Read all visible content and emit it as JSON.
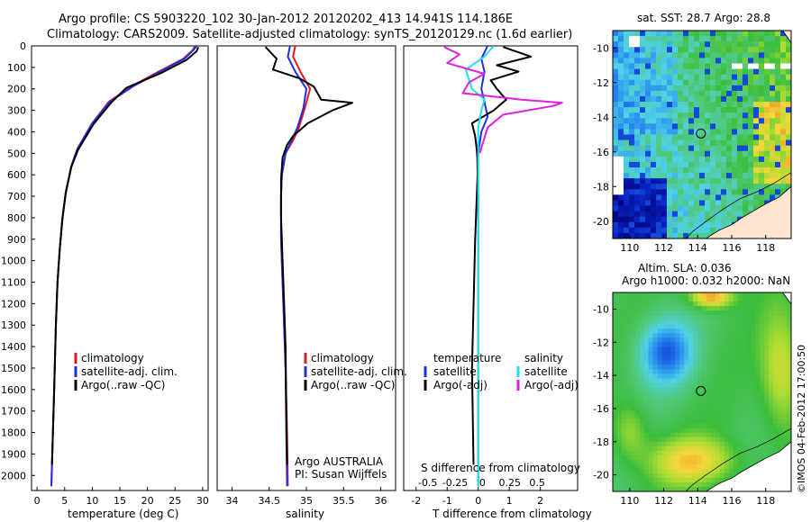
{
  "header": {
    "line1": "Argo profile: CS 5903220_102 30-Jan-2012 20120202_413 14.941S 114.186E",
    "line2": "Climatology: CARS2009. Satellite-adjusted climatology: synTS_20120129.nc (1.6d earlier)"
  },
  "depth_ticks": [
    "0",
    "100",
    "200",
    "300",
    "400",
    "500",
    "600",
    "700",
    "800",
    "900",
    "1000",
    "1100",
    "1200",
    "1300",
    "1400",
    "1500",
    "1600",
    "1700",
    "1800",
    "1900",
    "2000"
  ],
  "colors": {
    "clim": "#e41a1c",
    "sat": "#1f2fe0",
    "argo": "#000000",
    "sal_sat": "#22e0f0",
    "sal_argo": "#e020e0"
  },
  "chart_data": [
    {
      "type": "line",
      "id": "temperature",
      "xlabel": "temperature (deg C)",
      "ylabel": "depth",
      "xlim": [
        -1,
        31
      ],
      "ylim": [
        0,
        2070
      ],
      "xticks": [
        0,
        5,
        10,
        15,
        20,
        25,
        30
      ],
      "xtick_labels": [
        "0",
        "5",
        "10",
        "15",
        "20",
        "25",
        "30"
      ],
      "legend": [
        "climatology",
        "satellite-adj. clim.",
        "Argo(..raw -QC)"
      ],
      "series": [
        {
          "name": "climatology",
          "color_key": "clim",
          "x": [
            28.6,
            28.2,
            26.5,
            22,
            17,
            13,
            10,
            7.3,
            6.2,
            5.2,
            4.6,
            4.1,
            3.7,
            3.4,
            3.1,
            2.6
          ],
          "y": [
            0,
            20,
            60,
            120,
            190,
            260,
            360,
            480,
            560,
            680,
            800,
            950,
            1100,
            1300,
            1600,
            2050
          ]
        },
        {
          "name": "satellite-adj. clim.",
          "color_key": "sat",
          "x": [
            28.9,
            28.3,
            26.7,
            22.3,
            17.3,
            13.2,
            10,
            7.3,
            6.2,
            5.2,
            4.6,
            4.1,
            3.7,
            3.4,
            3.1,
            2.6
          ],
          "y": [
            0,
            20,
            60,
            120,
            190,
            260,
            360,
            480,
            560,
            680,
            800,
            950,
            1100,
            1300,
            1600,
            2050
          ]
        },
        {
          "name": "Argo(..raw -QC)",
          "color_key": "argo",
          "x": [
            29.2,
            28.9,
            27.1,
            22.6,
            16.2,
            13.4,
            10.2,
            7.4,
            6.2,
            5.2,
            4.6,
            4.1,
            3.7,
            3.4,
            3.1,
            2.7
          ],
          "y": [
            5,
            25,
            65,
            125,
            195,
            265,
            365,
            485,
            565,
            685,
            805,
            955,
            1105,
            1305,
            1605,
            1950
          ]
        }
      ]
    },
    {
      "type": "line",
      "id": "salinity",
      "xlabel": "salinity",
      "xlim": [
        33.8,
        36.2
      ],
      "ylim": [
        0,
        2070
      ],
      "xticks": [
        34,
        34.5,
        35,
        35.5,
        36
      ],
      "xtick_labels": [
        "34",
        "34.5",
        "35",
        "35.5",
        "36"
      ],
      "legend": [
        "climatology",
        "satellite-adj. clim.",
        "Argo(..raw -QC)"
      ],
      "annotation": [
        "Argo AUSTRALIA",
        "PI: Susan Wijffels"
      ],
      "series": [
        {
          "name": "climatology",
          "color_key": "clim",
          "x": [
            34.85,
            34.82,
            34.92,
            35.05,
            34.98,
            34.9,
            34.82,
            34.72,
            34.67,
            34.66,
            34.66,
            34.68,
            34.7,
            34.72,
            34.74,
            34.75
          ],
          "y": [
            0,
            50,
            120,
            200,
            290,
            380,
            440,
            500,
            600,
            700,
            900,
            1100,
            1300,
            1500,
            1800,
            2050
          ]
        },
        {
          "name": "satellite-adj. clim.",
          "color_key": "sat",
          "x": [
            34.78,
            34.75,
            34.85,
            35.0,
            34.96,
            34.88,
            34.8,
            34.72,
            34.67,
            34.66,
            34.66,
            34.68,
            34.7,
            34.72,
            34.73,
            34.74
          ],
          "y": [
            0,
            50,
            120,
            200,
            290,
            380,
            440,
            500,
            600,
            700,
            900,
            1100,
            1300,
            1500,
            1800,
            2050
          ]
        },
        {
          "name": "Argo(..raw -QC)",
          "color_key": "argo",
          "x": [
            34.45,
            34.6,
            34.55,
            34.9,
            35.1,
            35.2,
            35.62,
            35.35,
            35.02,
            34.82,
            34.74,
            34.68,
            34.66,
            34.66,
            34.68,
            34.7,
            34.72,
            34.73,
            34.74
          ],
          "y": [
            5,
            60,
            110,
            150,
            190,
            250,
            265,
            300,
            360,
            420,
            460,
            520,
            620,
            800,
            1000,
            1200,
            1400,
            1700,
            1950
          ]
        }
      ]
    },
    {
      "type": "line",
      "id": "difference",
      "xlabel": "T difference from climatology",
      "xlabel_top": "S difference from climatology",
      "xlim": [
        -2.4,
        3.2
      ],
      "ylim": [
        0,
        2070
      ],
      "xticks": [
        -2,
        -1,
        0,
        1,
        2
      ],
      "xtick_labels": [
        "-2",
        "-1",
        "0",
        "1",
        "2"
      ],
      "s_xticks": [
        -0.5,
        -0.25,
        0,
        0.25,
        0.5
      ],
      "s_xtick_labels": [
        "-0.5",
        "-0.25",
        "0",
        "0.25",
        "0.5"
      ],
      "legend_titles": [
        "temperature",
        "salinity"
      ],
      "legend": [
        "satellite",
        "Argo(-adj)",
        "satellite",
        "Argo(-adj)"
      ],
      "series": [
        {
          "name": "temperature satellite",
          "color_key": "sat",
          "x": [
            0.3,
            0.1,
            0.2,
            0.1,
            0.2,
            0.3,
            0.1,
            0,
            0,
            0,
            0
          ],
          "y": [
            0,
            60,
            120,
            200,
            260,
            330,
            400,
            500,
            800,
            1200,
            2050
          ]
        },
        {
          "name": "temperature Argo(-adj)",
          "color_key": "argo",
          "x": [
            0.8,
            1.7,
            0.6,
            1.3,
            0.4,
            0.6,
            0.9,
            0.5,
            -0.2,
            -0.1,
            -0.05,
            -0.03,
            -0.02,
            -0.1,
            -0.2,
            -0.15
          ],
          "y": [
            5,
            50,
            90,
            120,
            160,
            200,
            250,
            300,
            360,
            420,
            480,
            520,
            600,
            900,
            1500,
            1950
          ]
        },
        {
          "name": "salinity satellite",
          "color_key": "sal_sat",
          "x": [
            0.5,
            0.2,
            -0.4,
            -0.2,
            0.2,
            0.1,
            0,
            0,
            0,
            0,
            0
          ],
          "y": [
            0,
            50,
            110,
            200,
            250,
            300,
            380,
            500,
            800,
            1200,
            2050
          ]
        },
        {
          "name": "salinity Argo(-adj)",
          "color_key": "sal_argo",
          "x": [
            -1.1,
            -0.6,
            -1.0,
            0.2,
            -0.3,
            -0.5,
            1.4,
            2.7,
            2.4,
            0.8,
            0.3,
            0.05
          ],
          "y": [
            5,
            40,
            80,
            130,
            170,
            220,
            250,
            265,
            280,
            320,
            380,
            500
          ]
        }
      ]
    },
    {
      "type": "heatmap",
      "id": "sst_map",
      "title": "sat. SST: 28.7 Argo: 28.8",
      "xlim": [
        109,
        119.5
      ],
      "ylim": [
        -21,
        -9
      ],
      "xticks": [
        110,
        112,
        114,
        116,
        118
      ],
      "xtick_labels": [
        "110",
        "112",
        "114",
        "116",
        "118"
      ],
      "yticks": [
        -10,
        -12,
        -14,
        -16,
        -18,
        -20
      ],
      "ytick_labels": [
        "-10",
        "-12",
        "-14",
        "-16",
        "-18",
        "-20"
      ],
      "marker": {
        "lon": 114.186,
        "lat": -14.941
      }
    },
    {
      "type": "heatmap",
      "id": "sla_map",
      "title_lines": [
        "Altim. SLA: 0.036",
        "Argo h1000: 0.032 h2000: NaN"
      ],
      "xlim": [
        109,
        119.5
      ],
      "ylim": [
        -21,
        -9
      ],
      "xticks": [
        110,
        112,
        114,
        116,
        118
      ],
      "xtick_labels": [
        "110",
        "112",
        "114",
        "116",
        "118"
      ],
      "yticks": [
        -10,
        -12,
        -14,
        -16,
        -18,
        -20
      ],
      "ytick_labels": [
        "-10",
        "-12",
        "-14",
        "-16",
        "-18",
        "-20"
      ],
      "marker": {
        "lon": 114.186,
        "lat": -14.941
      }
    }
  ],
  "footer": {
    "stamp": "©IMOS 04-Feb-2012 17:00:50"
  }
}
